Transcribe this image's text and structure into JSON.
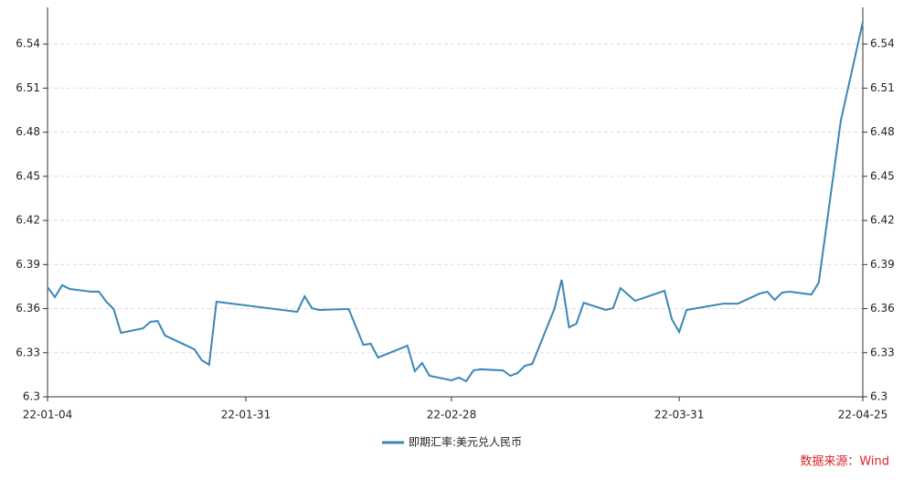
{
  "chart_data": {
    "type": "line",
    "x": [
      "22-01-04",
      "22-01-05",
      "22-01-06",
      "22-01-07",
      "22-01-10",
      "22-01-11",
      "22-01-12",
      "22-01-13",
      "22-01-14",
      "22-01-17",
      "22-01-18",
      "22-01-19",
      "22-01-20",
      "22-01-24",
      "22-01-25",
      "22-01-26",
      "22-01-27",
      "22-02-07",
      "22-02-08",
      "22-02-09",
      "22-02-10",
      "22-02-14",
      "22-02-16",
      "22-02-17",
      "22-02-18",
      "22-02-22",
      "22-02-23",
      "22-02-24",
      "22-02-25",
      "22-02-28",
      "22-03-01",
      "22-03-02",
      "22-03-03",
      "22-03-04",
      "22-03-07",
      "22-03-08",
      "22-03-09",
      "22-03-10",
      "22-03-11",
      "22-03-14",
      "22-03-15",
      "22-03-16",
      "22-03-17",
      "22-03-18",
      "22-03-21",
      "22-03-22",
      "22-03-23",
      "22-03-25",
      "22-03-29",
      "22-03-30",
      "22-03-31",
      "22-04-01",
      "22-04-06",
      "22-04-08",
      "22-04-11",
      "22-04-12",
      "22-04-13",
      "22-04-14",
      "22-04-15",
      "22-04-18",
      "22-04-19",
      "22-04-22",
      "22-04-25"
    ],
    "series": [
      {
        "name": "即期汇率:美元兑人民币",
        "color": "#3a87b5",
        "values": [
          6.3746,
          6.3678,
          6.3759,
          6.3734,
          6.3715,
          6.3715,
          6.3647,
          6.3597,
          6.3435,
          6.3466,
          6.351,
          6.3516,
          6.3417,
          6.3323,
          6.3249,
          6.3218,
          6.3647,
          6.3578,
          6.3684,
          6.3603,
          6.3591,
          6.3597,
          6.3354,
          6.3361,
          6.3267,
          6.3348,
          6.3174,
          6.323,
          6.3143,
          6.3112,
          6.3131,
          6.3106,
          6.318,
          6.3187,
          6.318,
          6.3143,
          6.3162,
          6.3211,
          6.3224,
          6.3597,
          6.3796,
          6.3473,
          6.3497,
          6.364,
          6.3591,
          6.3603,
          6.374,
          6.3653,
          6.3721,
          6.3528,
          6.3441,
          6.3591,
          6.3634,
          6.3634,
          6.3703,
          6.3715,
          6.3659,
          6.3709,
          6.3715,
          6.3696,
          6.3777,
          6.4878,
          6.555
        ]
      }
    ],
    "xlim": [
      "22-01-04",
      "22-04-25"
    ],
    "xticks": [
      "22-01-04",
      "22-01-31",
      "22-02-28",
      "22-03-31",
      "22-04-25"
    ],
    "ylim": [
      6.3,
      6.565
    ],
    "yticks": [
      6.3,
      6.33,
      6.36,
      6.39,
      6.42,
      6.45,
      6.48,
      6.51,
      6.54
    ],
    "y2lim": [
      6.3,
      6.565
    ],
    "y2ticks": [
      6.3,
      6.33,
      6.36,
      6.39,
      6.42,
      6.45,
      6.48,
      6.51,
      6.54
    ],
    "grid": true,
    "source": "数据来源：Wind"
  }
}
